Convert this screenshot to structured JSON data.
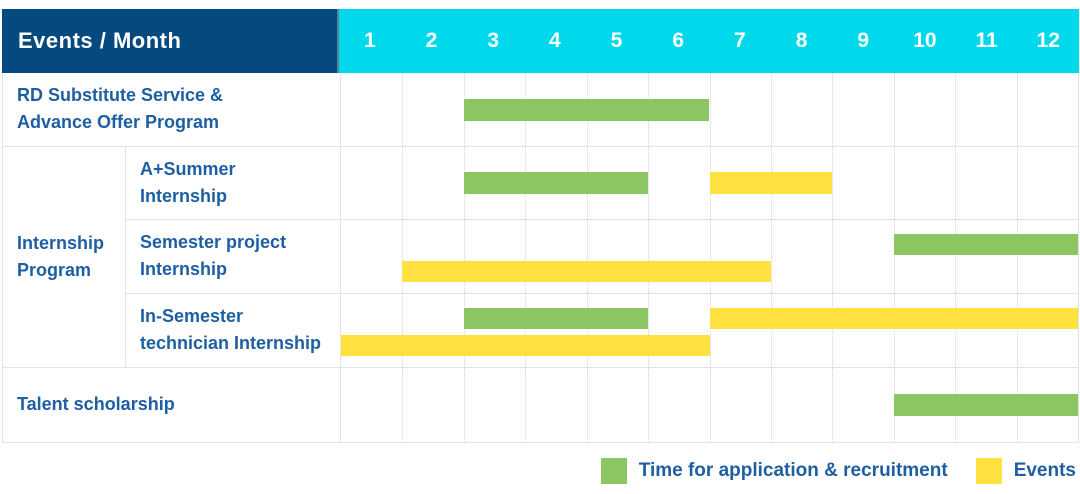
{
  "header": {
    "label": "Events / Month",
    "months": [
      "1",
      "2",
      "3",
      "4",
      "5",
      "6",
      "7",
      "8",
      "9",
      "10",
      "11",
      "12"
    ]
  },
  "colors": {
    "header_bg": "#054a7f",
    "month_header_bg": "#00d9ec",
    "application": "#8cc663",
    "event": "#ffe23f",
    "label_text": "#1e5fa3",
    "grid": "#e3e3e3"
  },
  "legend": {
    "items": [
      {
        "type": "application",
        "label": "Time for application & recruitment"
      },
      {
        "type": "event",
        "label": "Events"
      }
    ]
  },
  "chart_data": {
    "type": "gantt",
    "title": "Events / Month",
    "x_axis": {
      "unit": "month",
      "range": [
        1,
        12
      ],
      "ticks": [
        "1",
        "2",
        "3",
        "4",
        "5",
        "6",
        "7",
        "8",
        "9",
        "10",
        "11",
        "12"
      ]
    },
    "bar_kinds": {
      "application": "Time for application & recruitment",
      "event": "Events"
    },
    "rows": [
      {
        "label": "RD Substitute Service &\nAdvance Offer Program",
        "group": "",
        "bars": [
          {
            "type": "application",
            "start": 3,
            "end": 6,
            "line": "single"
          }
        ]
      },
      {
        "label": "A+Summer\nInternship",
        "group": "Internship Program",
        "bars": [
          {
            "type": "application",
            "start": 3,
            "end": 5,
            "line": "single"
          },
          {
            "type": "event",
            "start": 7,
            "end": 8,
            "line": "single"
          }
        ]
      },
      {
        "label": "Semester project\nInternship",
        "group": "Internship Program",
        "bars": [
          {
            "type": "application",
            "start": 10,
            "end": 12,
            "line": "top"
          },
          {
            "type": "event",
            "start": 2,
            "end": 7,
            "line": "bottom"
          }
        ]
      },
      {
        "label": "In-Semester\ntechnician Internship",
        "group": "Internship Program",
        "bars": [
          {
            "type": "application",
            "start": 3,
            "end": 5,
            "line": "top"
          },
          {
            "type": "event",
            "start": 7,
            "end": 12,
            "line": "top"
          },
          {
            "type": "event",
            "start": 1,
            "end": 6,
            "line": "bottom"
          }
        ]
      },
      {
        "label": "Talent scholarship",
        "group": "",
        "bars": [
          {
            "type": "application",
            "start": 10,
            "end": 12,
            "line": "single"
          }
        ]
      }
    ]
  }
}
